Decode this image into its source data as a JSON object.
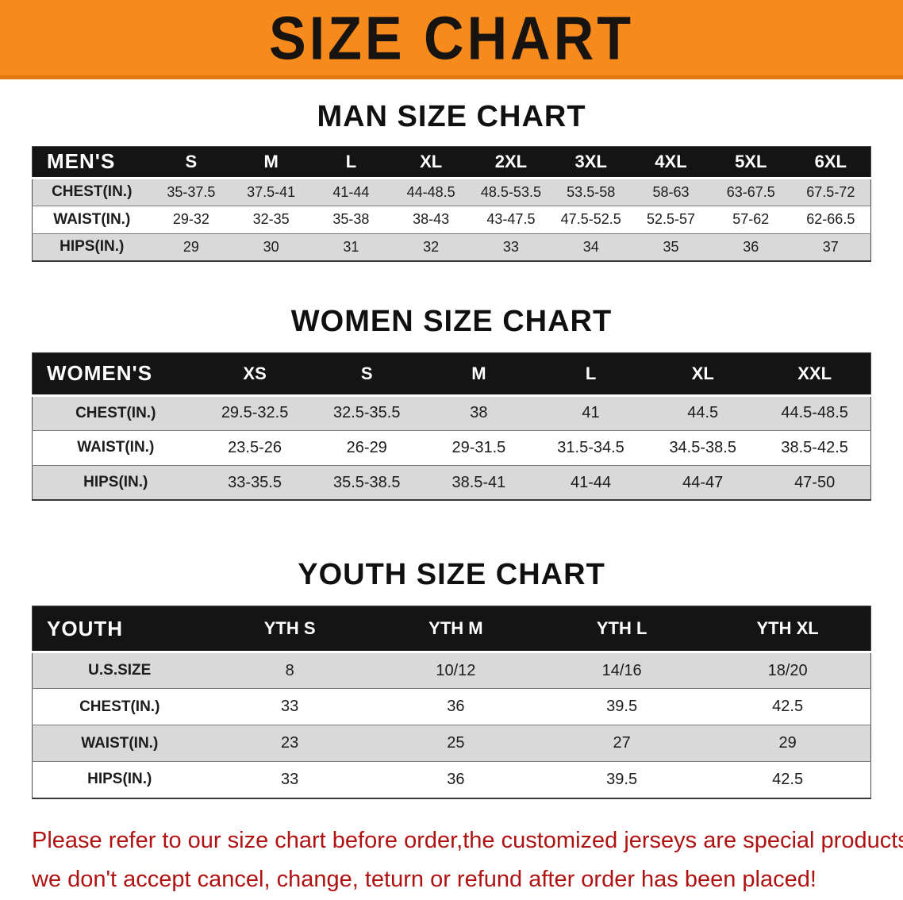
{
  "banner": {
    "title": "SIZE CHART",
    "bg_color": "#f68a1c",
    "text_color": "#171310"
  },
  "sections": [
    {
      "heading": "MAN SIZE CHART",
      "table": {
        "corner_label": "MEN'S",
        "columns": [
          "S",
          "M",
          "L",
          "XL",
          "2XL",
          "3XL",
          "4XL",
          "5XL",
          "6XL"
        ],
        "rows": [
          {
            "label": "CHEST(IN.)",
            "values": [
              "35-37.5",
              "37.5-41",
              "41-44",
              "44-48.5",
              "48.5-53.5",
              "53.5-58",
              "58-63",
              "63-67.5",
              "67.5-72"
            ]
          },
          {
            "label": "WAIST(IN.)",
            "values": [
              "29-32",
              "32-35",
              "35-38",
              "38-43",
              "43-47.5",
              "47.5-52.5",
              "52.5-57",
              "57-62",
              "62-66.5"
            ]
          },
          {
            "label": "HIPS(IN.)",
            "values": [
              "29",
              "30",
              "31",
              "32",
              "33",
              "34",
              "35",
              "36",
              "37"
            ]
          }
        ]
      }
    },
    {
      "heading": "WOMEN SIZE CHART",
      "table": {
        "corner_label": "WOMEN'S",
        "columns": [
          "XS",
          "S",
          "M",
          "L",
          "XL",
          "XXL"
        ],
        "rows": [
          {
            "label": "CHEST(IN.)",
            "values": [
              "29.5-32.5",
              "32.5-35.5",
              "38",
              "41",
              "44.5",
              "44.5-48.5"
            ]
          },
          {
            "label": "WAIST(IN.)",
            "values": [
              "23.5-26",
              "26-29",
              "29-31.5",
              "31.5-34.5",
              "34.5-38.5",
              "38.5-42.5"
            ]
          },
          {
            "label": "HIPS(IN.)",
            "values": [
              "33-35.5",
              "35.5-38.5",
              "38.5-41",
              "41-44",
              "44-47",
              "47-50"
            ]
          }
        ]
      }
    },
    {
      "heading": "YOUTH SIZE CHART",
      "table": {
        "corner_label": "YOUTH",
        "columns": [
          "YTH S",
          "YTH M",
          "YTH L",
          "YTH XL"
        ],
        "rows": [
          {
            "label": "U.S.SIZE",
            "values": [
              "8",
              "10/12",
              "14/16",
              "18/20"
            ]
          },
          {
            "label": "CHEST(IN.)",
            "values": [
              "33",
              "36",
              "39.5",
              "42.5"
            ]
          },
          {
            "label": "WAIST(IN.)",
            "values": [
              "23",
              "25",
              "27",
              "29"
            ]
          },
          {
            "label": "HIPS(IN.)",
            "values": [
              "33",
              "36",
              "39.5",
              "42.5"
            ]
          }
        ]
      }
    }
  ],
  "disclaimer": {
    "line1": "Please refer to our size chart before order,the customized jerseys are special products,",
    "line2": "we don't accept cancel, change, teturn or refund after order has been placed!",
    "color": "#b01212"
  }
}
